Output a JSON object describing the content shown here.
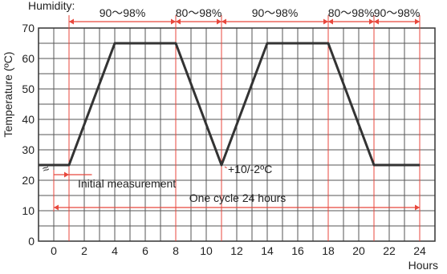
{
  "chart_data": {
    "type": "line",
    "xlabel": "Hours",
    "ylabel": "Temperature (ºC)",
    "humidity_label": "Humidity:",
    "xlim": [
      -1,
      25
    ],
    "ylim": [
      0,
      70
    ],
    "x_ticks": [
      0,
      2,
      4,
      6,
      8,
      10,
      12,
      14,
      16,
      18,
      20,
      22,
      24
    ],
    "y_ticks": [
      0,
      10,
      20,
      30,
      40,
      50,
      60,
      70
    ],
    "grid": true,
    "series": [
      {
        "x": [
          -1,
          1,
          4,
          8,
          11,
          14,
          18,
          21,
          24
        ],
        "y": [
          25,
          25,
          65,
          65,
          25,
          65,
          65,
          25,
          25
        ]
      }
    ],
    "humidity_ranges": [
      {
        "from": 1,
        "to": 8,
        "label": "90～98%"
      },
      {
        "from": 8,
        "to": 11,
        "label": "80～98%"
      },
      {
        "from": 11,
        "to": 18,
        "label": "90～98%"
      },
      {
        "from": 18,
        "to": 21,
        "label": "80～98%"
      },
      {
        "from": 21,
        "to": 24,
        "label": "90～98%"
      }
    ],
    "annotations": {
      "initial_measurement": "Initial measurement",
      "tolerance": "+10/-2ºC",
      "cycle": "One cycle 24 hours",
      "break_mark": "≈"
    },
    "colors": {
      "line": "#333333",
      "grid": "#555555",
      "accent": "#e8473c"
    }
  }
}
